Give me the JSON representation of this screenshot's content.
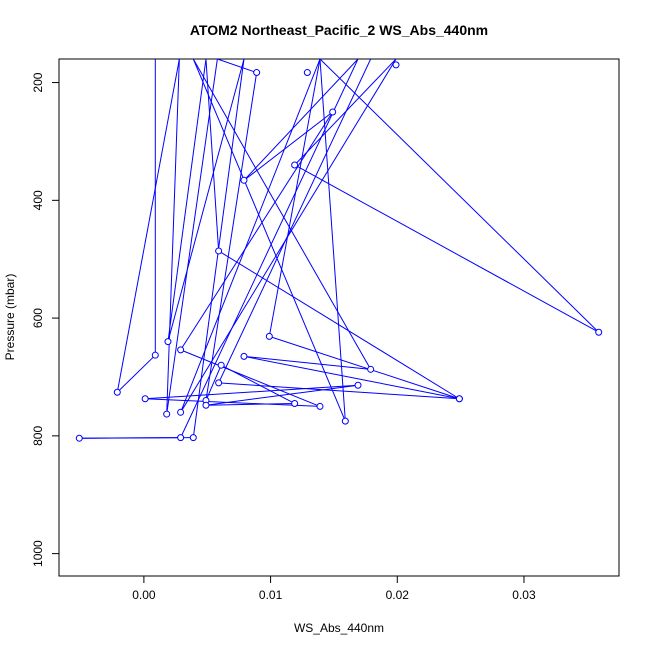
{
  "chart_data": {
    "type": "line",
    "title": "ATOM2 Northeast_Pacific_2 WS_Abs_440nm",
    "xlabel": "WS_Abs_440nm",
    "ylabel": "Pressure (mbar)",
    "xlim": [
      -0.0067,
      0.0375
    ],
    "ylim": [
      1038,
      160
    ],
    "y_reversed": true,
    "grid": false,
    "legend": "none",
    "series_color": "#0000ff",
    "x_ticks": [
      {
        "value": 0.0,
        "label": "0.00"
      },
      {
        "value": 0.01,
        "label": "0.01"
      },
      {
        "value": 0.02,
        "label": "0.02"
      },
      {
        "value": 0.03,
        "label": "0.03"
      }
    ],
    "y_ticks": [
      {
        "value": 200,
        "label": "200"
      },
      {
        "value": 400,
        "label": "400"
      },
      {
        "value": 600,
        "label": "600"
      },
      {
        "value": 800,
        "label": "800"
      },
      {
        "value": 1000,
        "label": "1000"
      }
    ],
    "points": [
      {
        "x": 0.0009,
        "y": 130,
        "marker": false
      },
      {
        "x": 0.0009,
        "y": 663,
        "marker": true
      },
      {
        "x": -0.0021,
        "y": 726,
        "marker": true
      },
      {
        "x": 0.0028,
        "y": 160,
        "marker": false
      },
      {
        "x": 0.0018,
        "y": 763,
        "marker": true
      },
      {
        "x": 0.0058,
        "y": 160,
        "marker": false
      },
      {
        "x": 0.0089,
        "y": 183,
        "marker": true
      },
      {
        "x": 0.0049,
        "y": 740,
        "marker": true
      },
      {
        "x": 0.0061,
        "y": 680,
        "marker": true
      },
      {
        "x": 0.0119,
        "y": 745,
        "marker": true
      },
      {
        "x": 0.0049,
        "y": 748,
        "marker": true
      },
      {
        "x": 0.0169,
        "y": 714,
        "marker": true
      },
      {
        "x": 0.0001,
        "y": 737,
        "marker": true
      },
      {
        "x": 0.0139,
        "y": 750,
        "marker": true
      },
      {
        "x": 0.0029,
        "y": 654,
        "marker": true
      },
      {
        "x": 0.0149,
        "y": 250,
        "marker": true
      },
      {
        "x": 0.0079,
        "y": 366,
        "marker": true
      },
      {
        "x": 0.0169,
        "y": 160,
        "marker": false
      },
      {
        "x": 0.0029,
        "y": 803,
        "marker": true
      },
      {
        "x": -0.0051,
        "y": 804,
        "marker": true
      },
      {
        "x": 0.0039,
        "y": 803,
        "marker": true
      },
      {
        "x": 0.0079,
        "y": 160,
        "marker": false
      },
      {
        "x": 0.0019,
        "y": 640,
        "marker": true
      },
      {
        "x": 0.0049,
        "y": 160,
        "marker": false
      },
      {
        "x": 0.0059,
        "y": 486,
        "marker": true
      },
      {
        "x": 0.0249,
        "y": 737,
        "marker": true
      },
      {
        "x": 0.0099,
        "y": 631,
        "marker": true
      },
      {
        "x": 0.0139,
        "y": 160,
        "marker": false
      },
      {
        "x": 0.0359,
        "y": 624,
        "marker": true
      },
      {
        "x": 0.0119,
        "y": 340,
        "marker": true
      },
      {
        "x": 0.0199,
        "y": 160,
        "marker": false
      },
      {
        "x": 0.0029,
        "y": 760,
        "marker": true
      },
      {
        "x": 0.0139,
        "y": 160,
        "marker": false
      },
      {
        "x": 0.0159,
        "y": 775,
        "marker": true
      },
      {
        "x": 0.0039,
        "y": 160,
        "marker": false
      },
      {
        "x": 0.0179,
        "y": 687,
        "marker": true
      },
      {
        "x": 0.0079,
        "y": 665,
        "marker": true
      },
      {
        "x": 0.0249,
        "y": 737,
        "marker": true
      },
      {
        "x": 0.0059,
        "y": 710,
        "marker": true
      },
      {
        "x": 0.0179,
        "y": 160,
        "marker": false
      }
    ],
    "extra_markers": [
      {
        "x": 0.0129,
        "y": 183
      },
      {
        "x": 0.0199,
        "y": 170
      }
    ]
  }
}
